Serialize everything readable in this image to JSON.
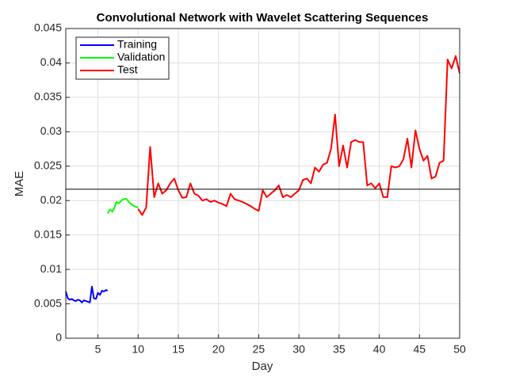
{
  "chart_data": {
    "type": "line",
    "title": "Convolutional Network with Wavelet Scattering Sequences",
    "xlabel": "Day",
    "ylabel": "MAE",
    "xlim": [
      1,
      50
    ],
    "xticks": [
      5,
      10,
      15,
      20,
      25,
      30,
      35,
      40,
      45,
      50
    ],
    "ylim": [
      0,
      0.045
    ],
    "yticks": [
      0,
      0.005,
      0.01,
      0.015,
      0.02,
      0.025,
      0.03,
      0.035,
      0.04,
      0.045
    ],
    "grid": true,
    "legend": "northwest",
    "hline": 0.02165,
    "series": [
      {
        "name": "Training",
        "color": "#0000ff",
        "x": [
          1,
          1.25,
          1.5,
          1.75,
          2,
          2.25,
          2.5,
          2.75,
          3,
          3.25,
          3.5,
          3.75,
          4,
          4.25,
          4.5,
          4.75,
          5,
          5.25,
          5.5,
          5.75,
          6,
          6.2
        ],
        "values": [
          0.0068,
          0.0058,
          0.0056,
          0.0057,
          0.0055,
          0.0054,
          0.0056,
          0.0055,
          0.0052,
          0.0055,
          0.0054,
          0.0053,
          0.0052,
          0.0075,
          0.0058,
          0.0057,
          0.0066,
          0.0063,
          0.0069,
          0.0068,
          0.007,
          0.0069
        ]
      },
      {
        "name": "Validation",
        "color": "#00ff00",
        "x": [
          6.2,
          6.5,
          6.8,
          7,
          7.3,
          7.6,
          8,
          8.5,
          9,
          9.5,
          10
        ],
        "values": [
          0.0181,
          0.0187,
          0.0184,
          0.0188,
          0.0198,
          0.0196,
          0.0201,
          0.0203,
          0.0196,
          0.0192,
          0.019
        ]
      },
      {
        "name": "Test",
        "color": "#ff0000",
        "x": [
          10,
          10.5,
          11,
          11.5,
          12,
          12.5,
          13,
          13.5,
          14,
          14.5,
          15,
          15.5,
          16,
          16.5,
          17,
          17.5,
          18,
          18.5,
          19,
          19.5,
          20,
          20.5,
          21,
          21.5,
          22,
          22.5,
          23,
          23.5,
          24,
          24.5,
          25,
          25.5,
          26,
          26.5,
          27,
          27.5,
          28,
          28.5,
          29,
          29.5,
          30,
          30.5,
          31,
          31.5,
          32,
          32.5,
          33,
          33.5,
          34,
          34.5,
          35,
          35.5,
          36,
          36.5,
          37,
          37.5,
          38,
          38.5,
          39,
          39.5,
          40,
          40.5,
          41,
          41.5,
          42,
          42.5,
          43,
          43.5,
          44,
          44.5,
          45,
          45.5,
          46,
          46.5,
          47,
          47.5,
          48,
          48.5,
          49,
          49.5,
          50
        ],
        "values": [
          0.0188,
          0.0179,
          0.019,
          0.0278,
          0.0205,
          0.0225,
          0.021,
          0.0215,
          0.0225,
          0.0232,
          0.0215,
          0.0204,
          0.0205,
          0.0225,
          0.021,
          0.0207,
          0.02,
          0.0202,
          0.0198,
          0.02,
          0.0197,
          0.0195,
          0.0192,
          0.021,
          0.0202,
          0.02,
          0.0198,
          0.0195,
          0.0192,
          0.0188,
          0.0185,
          0.0215,
          0.0205,
          0.021,
          0.0215,
          0.0222,
          0.0205,
          0.0208,
          0.0205,
          0.021,
          0.0215,
          0.023,
          0.0232,
          0.0225,
          0.0248,
          0.0242,
          0.0252,
          0.0255,
          0.0275,
          0.0325,
          0.025,
          0.028,
          0.0248,
          0.0285,
          0.0288,
          0.0285,
          0.0285,
          0.0222,
          0.0225,
          0.0218,
          0.0225,
          0.0205,
          0.0205,
          0.025,
          0.0248,
          0.025,
          0.026,
          0.029,
          0.0248,
          0.0302,
          0.0275,
          0.0258,
          0.0265,
          0.0232,
          0.0235,
          0.0255,
          0.0258,
          0.0405,
          0.0392,
          0.041,
          0.0385
        ]
      }
    ]
  }
}
